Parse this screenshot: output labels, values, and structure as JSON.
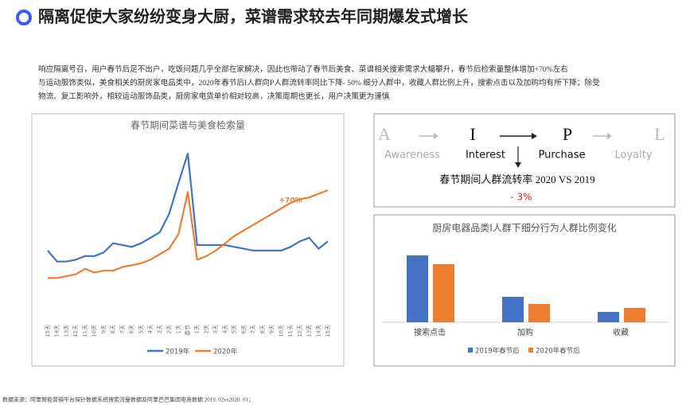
{
  "header": {
    "title": "隔离促使大家纷纷变身大厨，菜谱需求较去年同期爆发式增长"
  },
  "paragraph": [
    "响应隔离号召，用户春节后足不出户，吃饭问题几乎全部在家解决，因此也带动了春节后美食、菜谱相关搜索需求大幅攀升，春节后检索量整体增加+70%左右",
    "与运动服饰类似，美食相关的厨房家电品类中，2020年春节后I人群向P人群流转率同比下降- 50%  细分人群中，收藏人群比例上升，搜索点击以及加购均有所下降；除受",
    "物流、复工影响外，相较运动服饰品类，厨房家电货单价相对较高，决策周期也更长，用户决策更为谨慎"
  ],
  "chart_data": [
    {
      "type": "line",
      "title": "春节期间菜谱与美食检索量",
      "categories": [
        "15天",
        "14天",
        "13天",
        "12天",
        "11天",
        "10天",
        "9天",
        "8天",
        "7天",
        "6天",
        "5天",
        "4天",
        "3天",
        "2天",
        "1天",
        "春节",
        "1天",
        "2天",
        "3天",
        "4天",
        "5天",
        "6天",
        "7天",
        "8天",
        "9天",
        "10天",
        "11天",
        "12天",
        "13天",
        "14天",
        "15天"
      ],
      "series": [
        {
          "name": "2019年",
          "color": "#4472c4",
          "values": [
            37,
            31,
            31,
            32,
            34,
            34,
            36,
            41,
            40,
            39,
            41,
            44,
            47,
            57,
            74,
            90,
            40,
            40,
            40,
            40,
            39,
            38,
            37,
            37,
            37,
            37,
            39,
            42,
            44,
            38,
            42
          ]
        },
        {
          "name": "2020年",
          "color": "#ed7d31",
          "values": [
            22,
            22,
            23,
            24,
            27,
            25,
            26,
            26,
            28,
            29,
            30,
            32,
            35,
            38,
            46,
            69,
            32,
            34,
            37,
            41,
            45,
            48,
            51,
            54,
            57,
            60,
            63,
            65,
            66,
            68,
            70
          ]
        }
      ],
      "ylim": [
        0,
        100
      ],
      "annotation": "+70%"
    },
    {
      "type": "bar",
      "title": "厨房电器品类I人群下细分行为人群比例变化",
      "categories": [
        "搜索点击",
        "加购",
        "收藏"
      ],
      "series": [
        {
          "name": "2019年春节后",
          "color": "#4472c4",
          "values": [
            84,
            32,
            13
          ]
        },
        {
          "name": "2020年春节后",
          "color": "#ed7d31",
          "values": [
            73,
            23,
            18
          ]
        }
      ],
      "ylim": [
        0,
        100
      ]
    }
  ],
  "funnel": {
    "stages": [
      {
        "letter": "A",
        "name": "Awareness"
      },
      {
        "letter": "I",
        "name": "Interest"
      },
      {
        "letter": "P",
        "name": "Purchase"
      },
      {
        "letter": "L",
        "name": "Loyalty"
      }
    ],
    "title": "春节期间人群流转率 2020 VS 2019",
    "change": "- 3%"
  },
  "footer": "数据来源：阿里智能营销平台探针数据系统搜索流量数据及阿里巴巴集团电商数据 2019. 02vs2020. 01；"
}
